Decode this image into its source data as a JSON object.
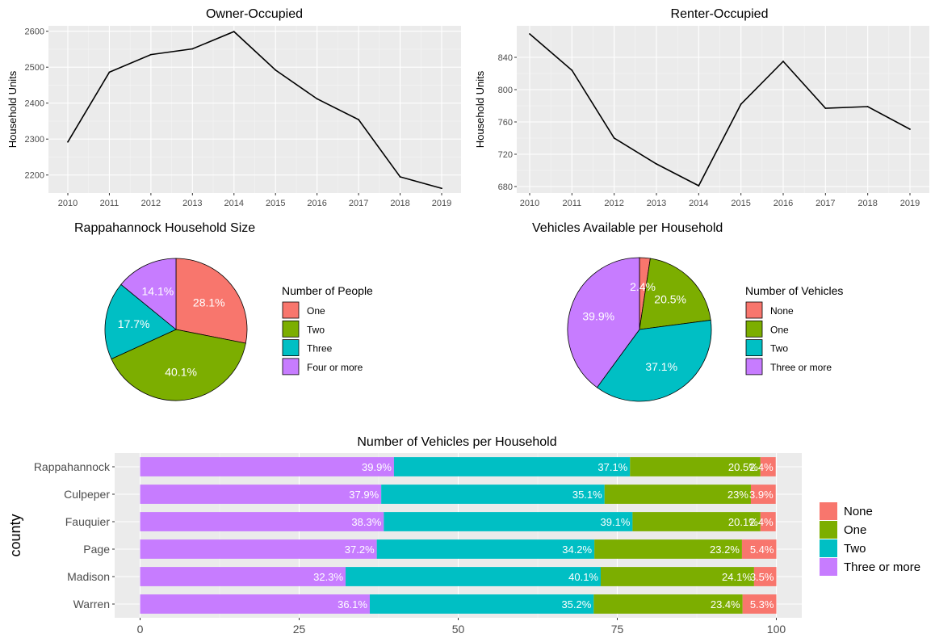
{
  "chart_data": [
    {
      "type": "line",
      "title": "Owner-Occupied",
      "xlabel": "",
      "ylabel": "Household Units",
      "x": [
        "2010",
        "2011",
        "2012",
        "2013",
        "2014",
        "2015",
        "2016",
        "2017",
        "2018",
        "2019"
      ],
      "values": [
        2292,
        2486,
        2535,
        2551,
        2599,
        2492,
        2412,
        2354,
        2195,
        2163
      ],
      "ylim": [
        2150,
        2615
      ],
      "yticks": [
        2200,
        2300,
        2400,
        2500,
        2600
      ],
      "grid": true
    },
    {
      "type": "line",
      "title": "Renter-Occupied",
      "xlabel": "",
      "ylabel": "Household Units",
      "x": [
        "2010",
        "2011",
        "2012",
        "2013",
        "2014",
        "2015",
        "2016",
        "2017",
        "2018",
        "2019"
      ],
      "values": [
        869,
        824,
        740,
        708,
        681,
        782,
        835,
        777,
        779,
        751
      ],
      "ylim": [
        672,
        879
      ],
      "yticks": [
        680,
        720,
        760,
        800,
        840
      ],
      "grid": true
    },
    {
      "type": "pie",
      "title": "Rappahannock Household Size",
      "legend_title": "Number of People",
      "labels": [
        "One",
        "Two",
        "Three",
        "Four or more"
      ],
      "values": [
        28.1,
        40.1,
        17.7,
        14.1
      ],
      "value_labels": [
        "28.1%",
        "40.1%",
        "17.7%",
        "14.1%"
      ],
      "colors": [
        "#F8766D",
        "#7CAE00",
        "#00BFC4",
        "#C77CFF"
      ],
      "legend_position": "right"
    },
    {
      "type": "pie",
      "title": "Vehicles Available per Household",
      "legend_title": "Number of Vehicles",
      "labels": [
        "None",
        "One",
        "Two",
        "Three or more"
      ],
      "values": [
        2.4,
        20.5,
        37.1,
        39.9
      ],
      "value_labels": [
        "2.4%",
        "20.5%",
        "37.1%",
        "39.9%"
      ],
      "colors": [
        "#F8766D",
        "#7CAE00",
        "#00BFC4",
        "#C77CFF"
      ],
      "legend_position": "right"
    },
    {
      "type": "bar",
      "orientation": "horizontal",
      "stacked": true,
      "title": "Number of Vehicles per Household",
      "xlabel": "",
      "ylabel": "county",
      "categories": [
        "Rappahannock",
        "Culpeper",
        "Fauquier",
        "Page",
        "Madison",
        "Warren"
      ],
      "xlim": [
        -4,
        104
      ],
      "xticks": [
        0,
        25,
        50,
        75,
        100
      ],
      "series": [
        {
          "name": "Three or more",
          "color": "#C77CFF",
          "values": [
            39.9,
            37.9,
            38.3,
            37.2,
            32.3,
            36.1
          ],
          "labels": [
            "39.9%",
            "37.9%",
            "38.3%",
            "37.2%",
            "32.3%",
            "36.1%"
          ]
        },
        {
          "name": "Two",
          "color": "#00BFC4",
          "values": [
            37.1,
            35.1,
            39.1,
            34.2,
            40.1,
            35.2
          ],
          "labels": [
            "37.1%",
            "35.1%",
            "39.1%",
            "34.2%",
            "40.1%",
            "35.2%"
          ]
        },
        {
          "name": "One",
          "color": "#7CAE00",
          "values": [
            20.5,
            23,
            20.1,
            23.2,
            24.1,
            23.4
          ],
          "labels": [
            "20.5%",
            "23%",
            "20.1%",
            "23.2%",
            "24.1%",
            "23.4%"
          ]
        },
        {
          "name": "None",
          "color": "#F8766D",
          "values": [
            2.4,
            3.9,
            2.4,
            5.4,
            3.5,
            5.3
          ],
          "labels": [
            "2.4%",
            "3.9%",
            "2.4%",
            "5.4%",
            "3.5%",
            "5.3%"
          ]
        }
      ],
      "legend_order": [
        "None",
        "One",
        "Two",
        "Three or more"
      ],
      "legend_position": "right",
      "grid": true
    }
  ]
}
